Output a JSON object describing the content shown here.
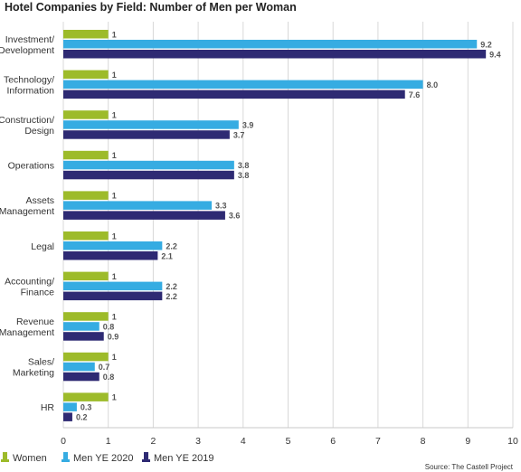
{
  "chart_data": {
    "type": "bar",
    "orientation": "horizontal",
    "title": "Hotel Companies by Field: Number of Men per Woman",
    "categories": [
      [
        "Investment/",
        "Development"
      ],
      [
        "Technology/",
        "Information"
      ],
      [
        "Construction/",
        "Design"
      ],
      [
        "Operations"
      ],
      [
        "Assets",
        "Management"
      ],
      [
        "Legal"
      ],
      [
        "Accounting/",
        "Finance"
      ],
      [
        "Revenue",
        "Management"
      ],
      [
        "Sales/",
        "Marketing"
      ],
      [
        "HR"
      ]
    ],
    "series": [
      {
        "name": "Women",
        "color": "#9dbb2a",
        "values": [
          1,
          1,
          1,
          1,
          1,
          1,
          1,
          1,
          1,
          1
        ],
        "labels": [
          "1",
          "1",
          "1",
          "1",
          "1",
          "1",
          "1",
          "1",
          "1",
          "1"
        ]
      },
      {
        "name": "Men YE 2020",
        "color": "#36ace2",
        "values": [
          9.2,
          8.0,
          3.9,
          3.8,
          3.3,
          2.2,
          2.2,
          0.8,
          0.7,
          0.3
        ],
        "labels": [
          "9.2",
          "8.0",
          "3.9",
          "3.8",
          "3.3",
          "2.2",
          "2.2",
          "0.8",
          "0.7",
          "0.3"
        ]
      },
      {
        "name": "Men YE 2019",
        "color": "#2e2a73",
        "values": [
          9.4,
          7.6,
          3.7,
          3.8,
          3.6,
          2.1,
          2.2,
          0.9,
          0.8,
          0.2
        ],
        "labels": [
          "9.4",
          "7.6",
          "3.7",
          "3.8",
          "3.6",
          "2.1",
          "2.2",
          "0.9",
          "0.8",
          "0.2"
        ]
      }
    ],
    "xlim": [
      0,
      10
    ],
    "xticks": [
      "0",
      "1",
      "2",
      "3",
      "4",
      "5",
      "6",
      "7",
      "8",
      "9",
      "10"
    ],
    "grid": true,
    "legend_position": "bottom-left",
    "source": "Source: The Castell Project"
  }
}
